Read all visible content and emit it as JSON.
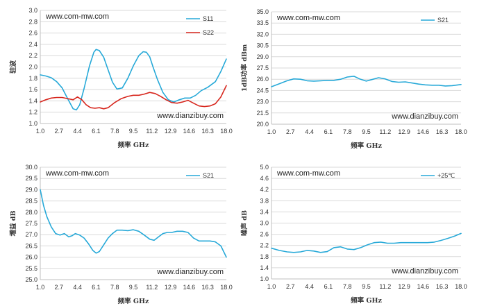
{
  "chart_data": [
    {
      "type": "line",
      "watermark_top": "www.com-mw.com",
      "watermark_bottom": "www.dianzibuy.com",
      "xlabel": "频率 GHz",
      "ylabel": "驻波",
      "xlim": [
        1.0,
        18.0
      ],
      "ylim": [
        1.0,
        3.0
      ],
      "xticks": [
        "1.0",
        "2.7",
        "4.4",
        "6.1",
        "7.8",
        "9.5",
        "11.2",
        "12.9",
        "14.6",
        "16.3",
        "18.0"
      ],
      "yticks": [
        "1.0",
        "1.2",
        "1.4",
        "1.6",
        "1.8",
        "2.0",
        "2.2",
        "2.4",
        "2.6",
        "2.8",
        "3.0"
      ],
      "grid": true,
      "legend_position": "top-right",
      "series": [
        {
          "name": "S11",
          "color": "#27a9d8",
          "x": [
            1.0,
            1.5,
            2.0,
            2.5,
            3.0,
            3.5,
            4.0,
            4.3,
            4.6,
            5.0,
            5.5,
            5.9,
            6.1,
            6.4,
            6.8,
            7.2,
            7.6,
            8.0,
            8.5,
            9.0,
            9.5,
            10.0,
            10.4,
            10.7,
            11.0,
            11.3,
            11.7,
            12.2,
            12.7,
            13.2,
            13.7,
            14.2,
            14.7,
            15.2,
            15.7,
            16.3,
            17.0,
            17.5,
            18.0
          ],
          "y": [
            1.86,
            1.84,
            1.81,
            1.74,
            1.63,
            1.44,
            1.26,
            1.24,
            1.33,
            1.62,
            2.02,
            2.26,
            2.31,
            2.29,
            2.17,
            1.95,
            1.73,
            1.61,
            1.63,
            1.8,
            2.02,
            2.2,
            2.27,
            2.26,
            2.18,
            2.0,
            1.78,
            1.55,
            1.42,
            1.38,
            1.42,
            1.45,
            1.45,
            1.5,
            1.58,
            1.64,
            1.74,
            1.92,
            2.14
          ]
        },
        {
          "name": "S22",
          "color": "#d7261d",
          "x": [
            1.0,
            1.5,
            2.0,
            2.5,
            3.0,
            3.5,
            4.0,
            4.4,
            4.8,
            5.2,
            5.6,
            6.0,
            6.4,
            6.8,
            7.2,
            7.8,
            8.4,
            9.0,
            9.5,
            10.0,
            10.5,
            11.0,
            11.5,
            12.0,
            12.5,
            13.0,
            13.5,
            14.0,
            14.5,
            15.0,
            15.5,
            16.0,
            16.5,
            17.0,
            17.5,
            18.0
          ],
          "y": [
            1.38,
            1.42,
            1.45,
            1.46,
            1.46,
            1.44,
            1.42,
            1.47,
            1.42,
            1.33,
            1.28,
            1.27,
            1.28,
            1.26,
            1.28,
            1.37,
            1.44,
            1.48,
            1.5,
            1.5,
            1.52,
            1.55,
            1.53,
            1.48,
            1.42,
            1.37,
            1.36,
            1.38,
            1.41,
            1.36,
            1.31,
            1.3,
            1.31,
            1.35,
            1.47,
            1.67
          ]
        }
      ]
    },
    {
      "type": "line",
      "watermark_top": "www.com-mw.com",
      "watermark_bottom": "www.dianzibuy.com",
      "xlabel": "频率 GHz",
      "ylabel": "1dB功率 dBm",
      "xlim": [
        1.0,
        18.0
      ],
      "ylim": [
        20.0,
        35.0
      ],
      "xticks": [
        "1.0",
        "2.7",
        "4.4",
        "6.1",
        "7.8",
        "9.5",
        "11.2",
        "12.9",
        "14.6",
        "16.3",
        "18.0"
      ],
      "yticks": [
        "20.0",
        "21.5",
        "23.0",
        "24.5",
        "26.0",
        "27.5",
        "29.0",
        "30.5",
        "32.0",
        "33.5",
        "35.0"
      ],
      "grid": true,
      "legend_position": "top-right",
      "series": [
        {
          "name": "S21",
          "color": "#27a9d8",
          "x": [
            1.0,
            1.7,
            2.4,
            3.0,
            3.6,
            4.2,
            4.8,
            5.4,
            6.0,
            6.6,
            7.2,
            7.8,
            8.4,
            8.9,
            9.5,
            10.0,
            10.6,
            11.2,
            11.8,
            12.4,
            13.0,
            13.6,
            14.2,
            14.8,
            15.4,
            16.0,
            16.6,
            17.2,
            18.0
          ],
          "y": [
            25.0,
            25.4,
            25.8,
            26.05,
            26.0,
            25.8,
            25.75,
            25.8,
            25.85,
            25.85,
            26.0,
            26.3,
            26.4,
            26.05,
            25.75,
            25.95,
            26.2,
            26.05,
            25.7,
            25.6,
            25.65,
            25.5,
            25.35,
            25.25,
            25.2,
            25.2,
            25.1,
            25.15,
            25.3
          ]
        }
      ]
    },
    {
      "type": "line",
      "watermark_top": "www.com-mw.com",
      "watermark_bottom": "www.dianzibuy.com",
      "xlabel": "频率 GHz",
      "ylabel": "增益 dB",
      "xlim": [
        1.0,
        18.0
      ],
      "ylim": [
        25.0,
        30.0
      ],
      "xticks": [
        "1.0",
        "2.7",
        "4.4",
        "6.1",
        "7.8",
        "9.5",
        "11.2",
        "12.9",
        "14.6",
        "16.3",
        "18.0"
      ],
      "yticks": [
        "25.0",
        "25.5",
        "26.0",
        "26.5",
        "27.0",
        "27.5",
        "28.0",
        "28.5",
        "29.0",
        "29.5",
        "30.0"
      ],
      "grid": true,
      "legend_position": "top-right",
      "series": [
        {
          "name": "S21",
          "color": "#27a9d8",
          "x": [
            1.0,
            1.3,
            1.6,
            2.0,
            2.4,
            2.8,
            3.2,
            3.6,
            3.9,
            4.2,
            4.6,
            5.0,
            5.4,
            5.8,
            6.1,
            6.4,
            6.8,
            7.2,
            7.6,
            8.0,
            8.5,
            9.0,
            9.5,
            10.0,
            10.5,
            11.0,
            11.4,
            11.8,
            12.2,
            12.6,
            13.0,
            13.5,
            14.0,
            14.5,
            15.0,
            15.5,
            16.0,
            16.5,
            17.0,
            17.5,
            18.0
          ],
          "y": [
            29.0,
            28.3,
            27.8,
            27.35,
            27.05,
            26.98,
            27.05,
            26.9,
            26.95,
            27.05,
            26.98,
            26.85,
            26.6,
            26.3,
            26.18,
            26.25,
            26.55,
            26.85,
            27.05,
            27.2,
            27.2,
            27.18,
            27.22,
            27.15,
            26.98,
            26.8,
            26.75,
            26.9,
            27.05,
            27.1,
            27.1,
            27.15,
            27.15,
            27.1,
            26.85,
            26.72,
            26.72,
            26.72,
            26.68,
            26.5,
            26.0
          ]
        }
      ]
    },
    {
      "type": "line",
      "watermark_top": "www.com-mw.com",
      "watermark_bottom": "www.dianzibuy.com",
      "xlabel": "频率 GHz",
      "ylabel": "噪声 dB",
      "xlim": [
        1.0,
        18.0
      ],
      "ylim": [
        1.0,
        5.0
      ],
      "xticks": [
        "1.0",
        "2.7",
        "4.4",
        "6.1",
        "7.8",
        "9.5",
        "11.2",
        "12.9",
        "14.6",
        "16.3",
        "18.0"
      ],
      "yticks": [
        "1.0",
        "1.4",
        "1.8",
        "2.2",
        "2.6",
        "3.0",
        "3.4",
        "3.8",
        "4.2",
        "4.6",
        "5.0"
      ],
      "grid": true,
      "legend_position": "top-right",
      "series": [
        {
          "name": "+25℃",
          "color": "#27a9d8",
          "x": [
            1.0,
            1.7,
            2.4,
            3.0,
            3.6,
            4.2,
            4.8,
            5.4,
            6.0,
            6.6,
            7.2,
            7.8,
            8.4,
            9.0,
            9.6,
            10.2,
            10.8,
            11.4,
            12.0,
            12.6,
            13.2,
            13.8,
            14.4,
            15.0,
            15.6,
            16.2,
            16.8,
            17.4,
            18.0
          ],
          "y": [
            2.1,
            2.02,
            1.97,
            1.95,
            1.97,
            2.02,
            2.0,
            1.95,
            1.98,
            2.12,
            2.15,
            2.07,
            2.05,
            2.12,
            2.22,
            2.3,
            2.32,
            2.28,
            2.28,
            2.3,
            2.3,
            2.3,
            2.3,
            2.3,
            2.32,
            2.38,
            2.45,
            2.53,
            2.63
          ]
        }
      ]
    }
  ]
}
